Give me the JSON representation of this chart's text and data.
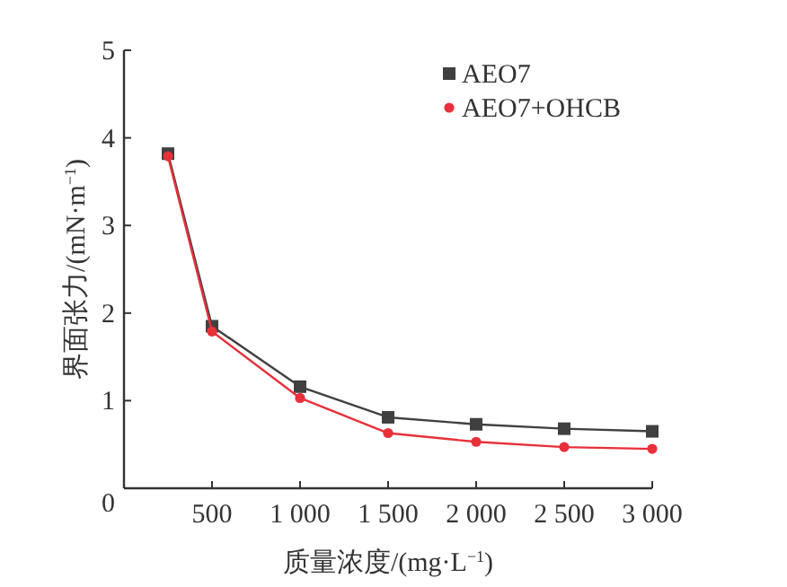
{
  "chart_data": {
    "type": "line",
    "xlabel": "质量浓度/(mg·L$^{−1}$)",
    "ylabel": "界面张力/(mN·m$^{−1}$)",
    "x": [
      250,
      500,
      1000,
      1500,
      2000,
      2500,
      3000
    ],
    "series": [
      {
        "name": "AEO7",
        "color": "#404040",
        "marker": "square",
        "values": [
          3.82,
          1.85,
          1.16,
          0.81,
          0.73,
          0.68,
          0.65
        ]
      },
      {
        "name": "AEO7+OHCB",
        "color": "#e8303a",
        "marker": "circle",
        "values": [
          3.79,
          1.79,
          1.03,
          0.63,
          0.53,
          0.47,
          0.45
        ]
      }
    ],
    "xlim": [
      0,
      3000
    ],
    "xticks": [
      500,
      {
        "value": 1000,
        "label": "1 000"
      },
      {
        "value": 1500,
        "label": "1 500"
      },
      {
        "value": 2000,
        "label": "2 000"
      },
      {
        "value": 2500,
        "label": "2 500"
      },
      {
        "value": 3000,
        "label": "3 000"
      }
    ],
    "ylim": [
      0,
      5
    ],
    "yticks": [
      0,
      1,
      2,
      3,
      4,
      5
    ],
    "grid": false,
    "legend": "top right",
    "line_style": "solid"
  }
}
